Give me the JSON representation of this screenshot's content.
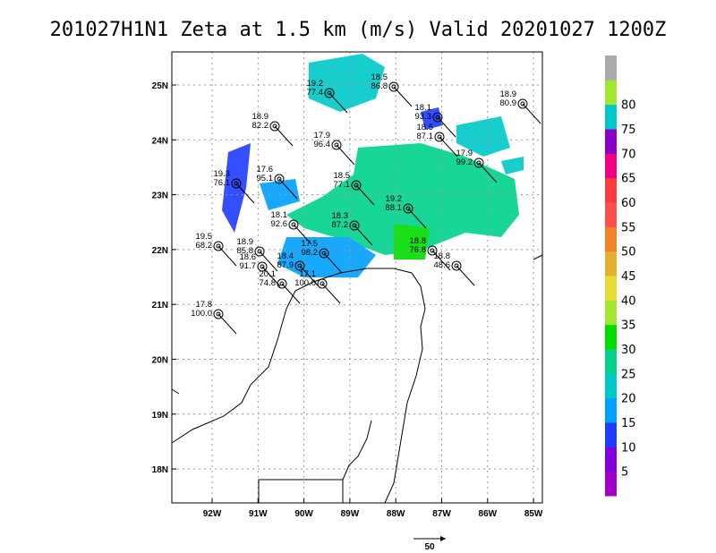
{
  "title": "201027H1N1 Zeta at 1.5 km (m/s) Valid 20201027 1200Z",
  "latitude_labels": [
    "25N",
    "24N",
    "23N",
    "22N",
    "21N",
    "20N",
    "19N",
    "18N"
  ],
  "longitude_labels": [
    "92W",
    "91W",
    "90W",
    "89W",
    "88W",
    "87W",
    "86W",
    "85W"
  ],
  "colorbar": {
    "labels": [
      "5",
      "10",
      "15",
      "20",
      "25",
      "30",
      "35",
      "40",
      "45",
      "50",
      "55",
      "60",
      "65",
      "70",
      "75",
      "80"
    ],
    "colors": [
      "#a000c8",
      "#8200dc",
      "#1e3cff",
      "#00a0ff",
      "#00c8c8",
      "#00d28c",
      "#00dc00",
      "#a0e632",
      "#e6dc32",
      "#e6af2d",
      "#f08228",
      "#fa5050",
      "#fa3c3c",
      "#f00082",
      "#8c00c8",
      "#00c8c8",
      "#a0e632",
      "#aaaaaa"
    ]
  },
  "vector_scale_label": "50",
  "stations": [
    {
      "line1": "18.5",
      "line2": "86.8"
    },
    {
      "line1": "19.2",
      "line2": "77.4"
    },
    {
      "line1": "18.9",
      "line2": "80.9"
    },
    {
      "line1": "18.1",
      "line2": "93.3"
    },
    {
      "line1": "18.9",
      "line2": "82.2"
    },
    {
      "line1": "18.5",
      "line2": "87.1"
    },
    {
      "line1": "17.9",
      "line2": "96.4"
    },
    {
      "line1": "17.9",
      "line2": "99.2"
    },
    {
      "line1": "17.6",
      "line2": "95.1"
    },
    {
      "line1": "19.3",
      "line2": "76.1"
    },
    {
      "line1": "18.5",
      "line2": "77.1"
    },
    {
      "line1": "19.2",
      "line2": "88.1"
    },
    {
      "line1": "18.1",
      "line2": "92.6"
    },
    {
      "line1": "18.3",
      "line2": "87.2"
    },
    {
      "line1": "19.5",
      "line2": "68.2"
    },
    {
      "line1": "18.9",
      "line2": "85.8"
    },
    {
      "line1": "18.8",
      "line2": "76.8"
    },
    {
      "line1": "18.6",
      "line2": "91.7"
    },
    {
      "line1": "17.5",
      "line2": "98.2"
    },
    {
      "line1": "18.4",
      "line2": "87.9"
    },
    {
      "line1": "18.8",
      "line2": "48.6"
    },
    {
      "line1": "20.1",
      "line2": "74.8"
    },
    {
      "line1": "17.1",
      "line2": "100.0"
    },
    {
      "line1": "17.8",
      "line2": "100.0"
    }
  ]
}
